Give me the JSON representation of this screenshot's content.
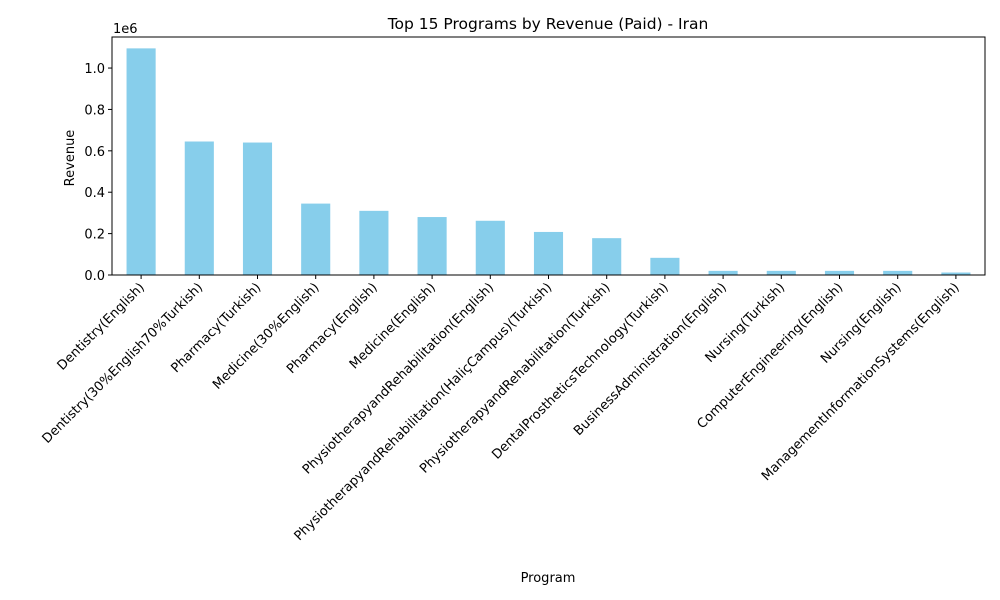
{
  "chart_data": {
    "type": "bar",
    "title": "Top 15 Programs by Revenue (Paid) - Iran",
    "xlabel": "Program",
    "ylabel": "Revenue",
    "y_offset_label": "1e6",
    "y_scale": 1000000,
    "ylim": [
      0,
      1150000
    ],
    "yticks": [
      0,
      200000,
      400000,
      600000,
      800000,
      1000000
    ],
    "ytick_labels": [
      "0.0",
      "0.2",
      "0.4",
      "0.6",
      "0.8",
      "1.0"
    ],
    "bar_color": "#87ceeb",
    "grid": false,
    "legend": "none",
    "categories": [
      "Dentistry(English)",
      "Dentistry(30%English70%Turkish)",
      "Pharmacy(Turkish)",
      "Medicine(30%English)",
      "Pharmacy(English)",
      "Medicine(English)",
      "PhysiotherapyandRehabilitation(English)",
      "PhysiotherapyandRehabilitation(HaliçCampus)(Turkish)",
      "PhysiotherapyandRehabilitation(Turkish)",
      "DentalProstheticsTechnology(Turkish)",
      "BusinessAdministration(English)",
      "Nursing(Turkish)",
      "ComputerEngineering(English)",
      "Nursing(English)",
      "ManagementInformationSystems(English)"
    ],
    "values": [
      1095000,
      645000,
      640000,
      345000,
      310000,
      280000,
      262000,
      208000,
      178000,
      83000,
      20000,
      20000,
      20000,
      20000,
      12000
    ]
  }
}
